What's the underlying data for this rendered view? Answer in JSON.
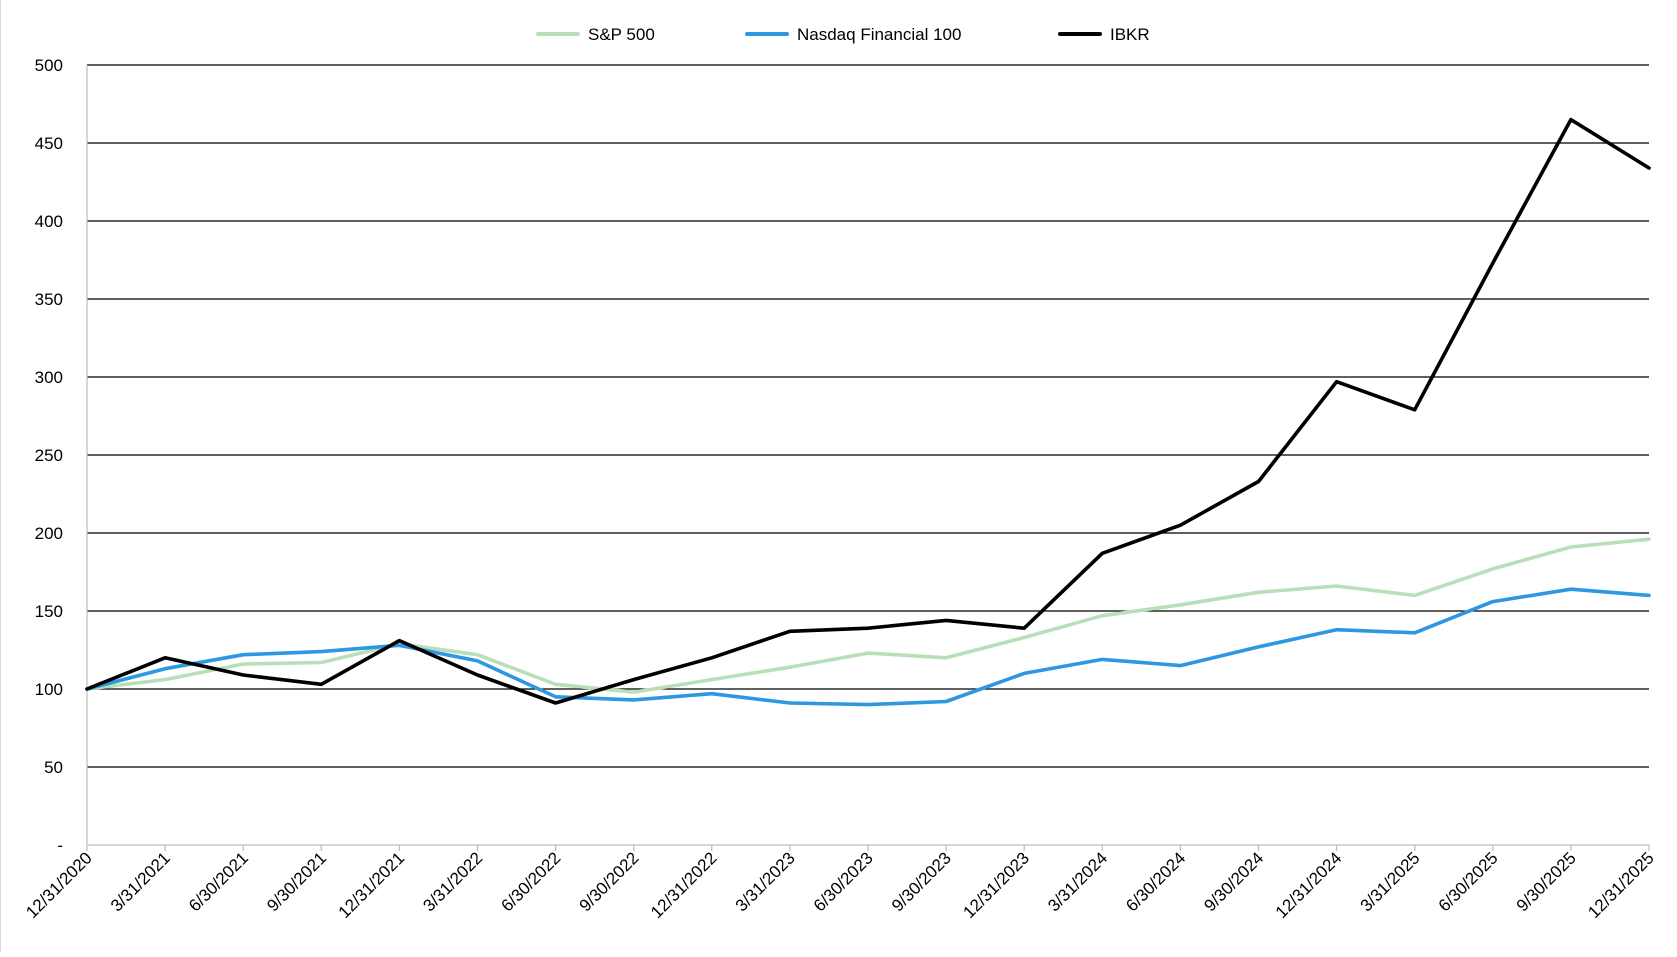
{
  "chart_data": {
    "type": "line",
    "title": "",
    "xlabel": "",
    "ylabel": "",
    "categories": [
      "12/31/2020",
      "3/31/2021",
      "6/30/2021",
      "9/30/2021",
      "12/31/2021",
      "3/31/2022",
      "6/30/2022",
      "9/30/2022",
      "12/31/2022",
      "3/31/2023",
      "6/30/2023",
      "9/30/2023",
      "12/31/2023",
      "3/31/2024",
      "6/30/2024",
      "9/30/2024",
      "12/31/2024",
      "3/31/2025",
      "6/30/2025",
      "9/30/2025",
      "12/31/2025"
    ],
    "ylim": [
      0,
      500
    ],
    "y_ticks": [
      0,
      50,
      100,
      150,
      200,
      250,
      300,
      350,
      400,
      450,
      500
    ],
    "y_tick_labels": [
      "-",
      "50",
      "100",
      "150",
      "200",
      "250",
      "300",
      "350",
      "400",
      "450",
      "500"
    ],
    "grid": "horizontal",
    "legend_position": "top",
    "series": [
      {
        "name": "S&P 500",
        "color": "#b9dfb9",
        "values": [
          100,
          106,
          116,
          117,
          129,
          122,
          103,
          98,
          106,
          114,
          123,
          120,
          133,
          147,
          154,
          162,
          166,
          160,
          177,
          191,
          196
        ]
      },
      {
        "name": "Nasdaq Financial 100",
        "color": "#2e97e2",
        "values": [
          100,
          113,
          122,
          124,
          128,
          118,
          95,
          93,
          97,
          91,
          90,
          92,
          110,
          119,
          115,
          127,
          138,
          136,
          156,
          164,
          160
        ]
      },
      {
        "name": "IBKR",
        "color": "#000000",
        "values": [
          100,
          120,
          109,
          103,
          131,
          109,
          91,
          106,
          120,
          137,
          139,
          144,
          139,
          187,
          205,
          233,
          297,
          279,
          373,
          465,
          434
        ]
      }
    ]
  }
}
